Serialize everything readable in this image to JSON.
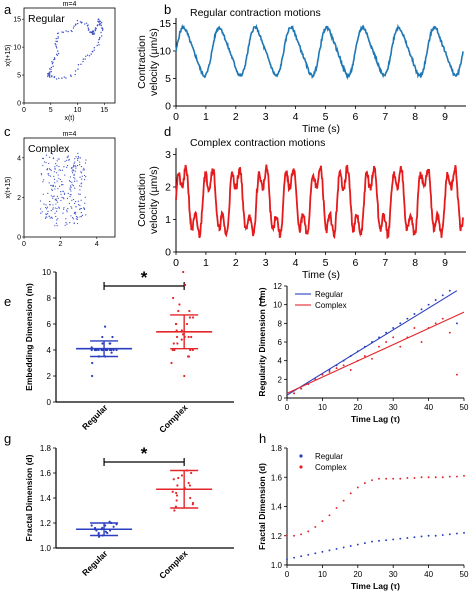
{
  "chart_data": [
    {
      "panel": "a",
      "type": "scatter",
      "title": "m=4",
      "annotation": "Regular",
      "xlabel": "x(t)",
      "ylabel": "x(t+15)",
      "xticks": [
        0,
        5,
        10,
        15
      ],
      "yticks": [
        0,
        5,
        10,
        15
      ],
      "xlim": [
        0,
        17
      ],
      "ylim": [
        0,
        17
      ],
      "color": "#3b4fc8",
      "series": [
        {
          "x": [
            4.8,
            6,
            9,
            11,
            12.5,
            13.8,
            14.5,
            14.5,
            14,
            14,
            13,
            13,
            12.5,
            12,
            10,
            9,
            6.5,
            6,
            6.3,
            5.5,
            5,
            4.5,
            4.8
          ],
          "y": [
            4.8,
            4.5,
            4.8,
            7.5,
            8.8,
            10.5,
            12.5,
            14.2,
            14.8,
            13.8,
            13,
            12.5,
            12.5,
            14,
            14.5,
            13,
            12.5,
            11,
            9,
            7.5,
            6,
            5,
            4.8
          ]
        }
      ]
    },
    {
      "panel": "b",
      "type": "line",
      "title": "Regular contraction motions",
      "xlabel": "Time (s)",
      "ylabel": "Contraction velocity (µm/s)",
      "xticks": [
        0,
        1,
        2,
        3,
        4,
        5,
        6,
        7,
        8,
        9
      ],
      "yticks": [
        0,
        5,
        10,
        15
      ],
      "xlim": [
        0,
        9.7
      ],
      "ylim": [
        0,
        16
      ],
      "color": "#1f77b4",
      "series": [
        {
          "period": 1.2,
          "min": 5,
          "max": 14.8,
          "duration": 9.6
        }
      ]
    },
    {
      "panel": "c",
      "type": "scatter",
      "title": "m=4",
      "annotation": "Complex",
      "xlabel": "",
      "ylabel": "x(t+15)",
      "xticks": [
        0,
        2,
        4
      ],
      "yticks": [
        0,
        2,
        4
      ],
      "xlim": [
        0,
        5
      ],
      "ylim": [
        0,
        5
      ],
      "color": "#3b4fc8"
    },
    {
      "panel": "d",
      "type": "line",
      "title": "Complex contraction motions",
      "xlabel": "Time (s)",
      "ylabel": "Contraction velocity (µm/s)",
      "xticks": [
        0,
        1,
        2,
        3,
        4,
        5,
        6,
        7,
        8,
        9
      ],
      "yticks": [
        0,
        1,
        2,
        3
      ],
      "xlim": [
        0,
        9.7
      ],
      "ylim": [
        0,
        3.2
      ],
      "color": "#e41a1c",
      "series": [
        {
          "period": 0.9,
          "min": 0.3,
          "max": 2.8,
          "duration": 9.6
        }
      ]
    },
    {
      "panel": "e",
      "type": "scatter",
      "title": "",
      "annotation": "*",
      "xlabel": "",
      "ylabel": "Embedding Dimension (m)",
      "categories": [
        "Regular",
        "Complex"
      ],
      "yticks": [
        0,
        2,
        4,
        6,
        8,
        10
      ],
      "ylim": [
        0,
        10
      ],
      "series": [
        {
          "name": "Regular",
          "mean": 4.1,
          "sd": 0.6,
          "color": "#2a3fbf",
          "values": [
            4,
            4,
            4,
            4,
            4,
            4,
            4,
            4,
            4,
            4,
            4,
            4,
            4,
            4,
            3.5,
            3.5,
            3.5,
            4.5,
            4.5,
            4.5,
            5,
            5,
            5.8,
            3,
            2,
            4.2,
            3.8
          ]
        },
        {
          "name": "Complex",
          "mean": 5.4,
          "sd": 1.3,
          "color": "#e4262a",
          "values": [
            4,
            4,
            4,
            4,
            4.5,
            4.5,
            5,
            5,
            5,
            5,
            5.5,
            5.5,
            6,
            6,
            6,
            6.5,
            6.5,
            7,
            7,
            7.5,
            8,
            9,
            10,
            3,
            3.5,
            3.5,
            2,
            5.2,
            4.8
          ]
        }
      ]
    },
    {
      "panel": "f",
      "type": "scatter",
      "title": "",
      "xlabel": "Time Lag (τ)",
      "ylabel": "Regularity Dimension (τ/m)",
      "xticks": [
        0,
        10,
        20,
        30,
        40,
        50
      ],
      "yticks": [
        0,
        2,
        4,
        6,
        8,
        10,
        12
      ],
      "xlim": [
        0,
        50
      ],
      "ylim": [
        0,
        12
      ],
      "legend": "top-left",
      "series": [
        {
          "name": "Regular",
          "color": "#2a3fbf",
          "x": [
            2,
            4,
            6,
            8,
            10,
            12,
            14,
            16,
            18,
            20,
            22,
            24,
            26,
            28,
            30,
            32,
            34,
            36,
            38,
            40,
            42,
            44,
            46,
            48
          ],
          "y": [
            0.5,
            1,
            1.5,
            2,
            2.5,
            3,
            3.5,
            4,
            4.5,
            5,
            5.5,
            6,
            6.5,
            7,
            7.5,
            8,
            8.5,
            9,
            9.5,
            10,
            10.5,
            11,
            11.5,
            8
          ],
          "fit": [
            [
              0,
              0.3
            ],
            [
              48,
              11.5
            ]
          ]
        },
        {
          "name": "Complex",
          "color": "#e4262a",
          "x": [
            2,
            4,
            6,
            8,
            10,
            12,
            14,
            16,
            18,
            20,
            22,
            24,
            26,
            28,
            30,
            32,
            34,
            36,
            38,
            40,
            42,
            44,
            46,
            48
          ],
          "y": [
            0.5,
            1,
            1.5,
            2,
            2.5,
            2.8,
            3.2,
            3.5,
            3,
            4,
            4.5,
            4.2,
            5.5,
            6,
            6.5,
            5.5,
            6.5,
            7.5,
            6,
            7.5,
            8,
            8.5,
            7,
            2.5
          ],
          "fit": [
            [
              0,
              0.5
            ],
            [
              50,
              9.2
            ]
          ]
        }
      ]
    },
    {
      "panel": "g",
      "type": "scatter",
      "title": "",
      "annotation": "*",
      "xlabel": "",
      "ylabel": "Fractal Dimension (d)",
      "categories": [
        "Regular",
        "Complex"
      ],
      "yticks": [
        1.0,
        1.2,
        1.4,
        1.6,
        1.8
      ],
      "ylim": [
        1.0,
        1.8
      ],
      "series": [
        {
          "name": "Regular",
          "mean": 1.15,
          "sd": 0.05,
          "color": "#2a3fbf",
          "values": [
            1.1,
            1.12,
            1.14,
            1.15,
            1.16,
            1.18,
            1.2,
            1.13,
            1.17,
            1.19,
            1.11,
            1.15,
            1.16,
            1.14,
            1.12,
            1.18,
            1.09,
            1.21
          ]
        },
        {
          "name": "Complex",
          "mean": 1.47,
          "sd": 0.15,
          "color": "#e4262a",
          "values": [
            1.3,
            1.35,
            1.4,
            1.45,
            1.5,
            1.55,
            1.6,
            1.42,
            1.48,
            1.52,
            1.38,
            1.58,
            1.33,
            1.62,
            1.44,
            1.5,
            1.36,
            1.56
          ]
        }
      ]
    },
    {
      "panel": "h",
      "type": "scatter",
      "title": "",
      "xlabel": "Time Lag (τ)",
      "ylabel": "Fractal Dimension (d)",
      "xticks": [
        0,
        10,
        20,
        30,
        40,
        50
      ],
      "yticks": [
        1.0,
        1.2,
        1.4,
        1.6,
        1.8
      ],
      "xlim": [
        0,
        50
      ],
      "ylim": [
        1.0,
        1.8
      ],
      "legend": "top-left",
      "series": [
        {
          "name": "Regular",
          "color": "#2a3fbf",
          "x": [
            0,
            2,
            4,
            6,
            8,
            10,
            12,
            14,
            16,
            18,
            20,
            22,
            24,
            26,
            28,
            30,
            32,
            34,
            36,
            38,
            40,
            42,
            44,
            46,
            48,
            50
          ],
          "y": [
            1.04,
            1.05,
            1.06,
            1.07,
            1.08,
            1.09,
            1.1,
            1.11,
            1.12,
            1.13,
            1.14,
            1.15,
            1.16,
            1.165,
            1.17,
            1.175,
            1.18,
            1.185,
            1.19,
            1.195,
            1.2,
            1.2,
            1.205,
            1.21,
            1.215,
            1.22
          ]
        },
        {
          "name": "Complex",
          "color": "#e4262a",
          "x": [
            0,
            2,
            4,
            6,
            8,
            10,
            12,
            14,
            16,
            18,
            20,
            22,
            24,
            26,
            28,
            30,
            32,
            34,
            36,
            38,
            40,
            42,
            44,
            46,
            48,
            50
          ],
          "y": [
            1.2,
            1.2,
            1.21,
            1.23,
            1.26,
            1.3,
            1.34,
            1.39,
            1.44,
            1.49,
            1.53,
            1.56,
            1.58,
            1.59,
            1.59,
            1.59,
            1.59,
            1.595,
            1.595,
            1.6,
            1.6,
            1.6,
            1.6,
            1.605,
            1.605,
            1.61
          ]
        }
      ]
    }
  ],
  "panel_labels": [
    "a",
    "b",
    "c",
    "d",
    "e",
    "f",
    "g",
    "h"
  ]
}
